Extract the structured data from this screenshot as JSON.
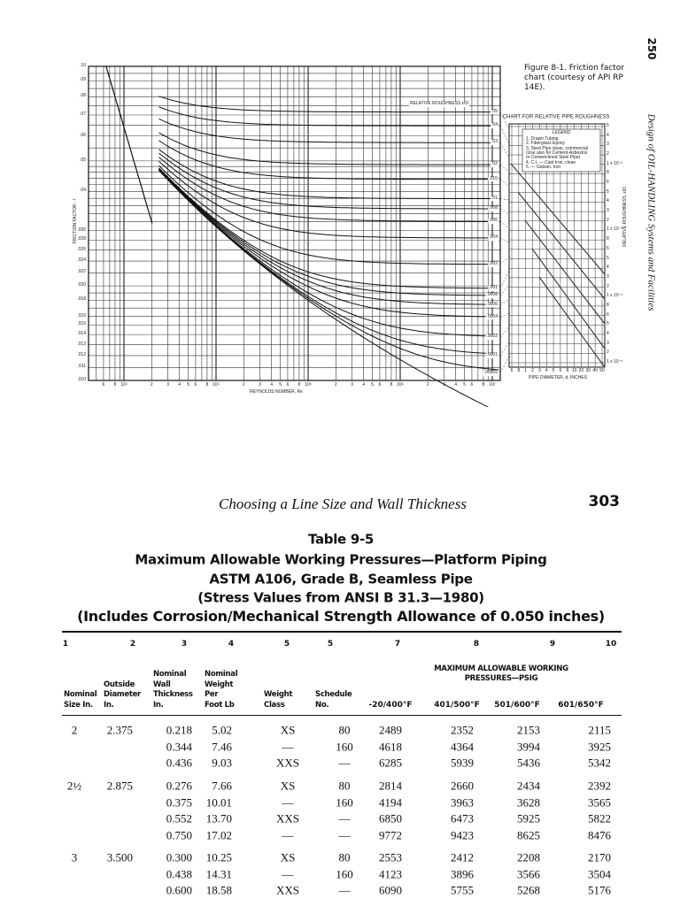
{
  "top_page": {
    "page_number": "250",
    "running_head": "Design of OIL-HANDLING Systems and Facilities",
    "caption": "Figure 8-1. Friction factor chart (courtesy of API RP 14E).",
    "friction_chart": {
      "y_axis_label": "FRICTION FACTOR - f",
      "x_axis_label": "REYNOLDS NUMBER, Re",
      "y_tick_labels": [
        ".10",
        ".09",
        ".08",
        ".07",
        ".06",
        ".05",
        ".04",
        ".030",
        ".028",
        ".026",
        ".024",
        ".022",
        ".020",
        ".018",
        ".016",
        ".015",
        ".014",
        ".013",
        ".012",
        ".011",
        ".010"
      ],
      "x_tick_labels": [
        "6",
        "8",
        "10³",
        "2",
        "3",
        "4",
        "5",
        "6",
        "8",
        "10⁴",
        "2",
        "3",
        "4",
        "5",
        "6",
        "8",
        "10⁵",
        "2",
        "3",
        "4",
        "5",
        "6",
        "8",
        "10⁶",
        "2",
        "3",
        "4",
        "5",
        "6",
        "8",
        "10⁷"
      ],
      "roughness_title": "RELATIVE ROUGHNESS ε/D",
      "roughness_labels": [
        ".05",
        ".04",
        ".03",
        ".02",
        ".015",
        ".01",
        ".008",
        ".006",
        ".004",
        ".002",
        ".001",
        ".0008",
        ".0006",
        ".0004",
        ".0002",
        ".0001",
        ".00005"
      ]
    },
    "roughness_chart": {
      "title": "CHART FOR RELATIVE PIPE ROUGHNESS",
      "legend_title": "LEGEND",
      "legend_items": [
        "1. Drawn Tubing",
        "2. Fiberglass Epoxy",
        "3. Steel Pipe clean, commercial",
        "(Use also for Cement-Asbestos",
        "or Cement-lined Steel Pipe)",
        "4. C.I. — Cast Iron, clean",
        "5. — Galvan. Iron"
      ],
      "x_tick_labels": [
        "6",
        "8",
        "1",
        "2",
        "3",
        "4",
        "5",
        "6",
        "8",
        "10",
        "20",
        "30",
        "40",
        "50"
      ],
      "x_axis_label": "PIPE DIAMETER, d, INCHES",
      "y_tick_labels": [
        "5",
        "4",
        "3",
        "2",
        "1 x 10⁻²",
        "8",
        "6",
        "5",
        "4",
        "3",
        "2",
        "1 x 10⁻³",
        "8",
        "6",
        "5",
        "4",
        "3",
        "2",
        "1 x 10⁻⁴",
        "8",
        "6",
        "5",
        "4",
        "3",
        "2",
        "1 x 10⁻⁵"
      ],
      "y_axis_label": "RELATIVE ROUGHNESS, ε/D"
    }
  },
  "bottom_page": {
    "running_head": "Choosing a Line Size and Wall Thickness",
    "page_number": "303",
    "table_title": [
      "Table 9-5",
      "Maximum Allowable Working Pressures—Platform Piping",
      "ASTM A106, Grade B, Seamless Pipe",
      "(Stress Values from ANSI B 31.3—1980)",
      "(Includes Corrosion/Mechanical Strength Allowance of 0.050 inches)"
    ],
    "table": {
      "column_numbers": [
        "1",
        "2",
        "3",
        "4",
        "5",
        "5",
        "7",
        "8",
        "9",
        "10"
      ],
      "column_headers": [
        "Nominal Size In.",
        "Outside Diameter In.",
        "Nominal Wall Thickness In.",
        "Nominal Weight Per Foot Lb",
        "Weight Class",
        "Schedule No."
      ],
      "group_header": "MAXIMUM ALLOWABLE WORKING PRESSURES—PSIG",
      "temperature_headers": [
        "-20/400°F",
        "401/500°F",
        "501/600°F",
        "601/650°F"
      ],
      "groups": [
        {
          "size": "2",
          "outside_diameter": "2.375",
          "rows": [
            [
              "0.218",
              "5.02",
              "XS",
              "80",
              "2489",
              "2352",
              "2153",
              "2115"
            ],
            [
              "0.344",
              "7.46",
              "—",
              "160",
              "4618",
              "4364",
              "3994",
              "3925"
            ],
            [
              "0.436",
              "9.03",
              "XXS",
              "—",
              "6285",
              "5939",
              "5436",
              "5342"
            ]
          ]
        },
        {
          "size": "2½",
          "outside_diameter": "2.875",
          "rows": [
            [
              "0.276",
              "7.66",
              "XS",
              "80",
              "2814",
              "2660",
              "2434",
              "2392"
            ],
            [
              "0.375",
              "10.01",
              "—",
              "160",
              "4194",
              "3963",
              "3628",
              "3565"
            ],
            [
              "0.552",
              "13.70",
              "XXS",
              "—",
              "6850",
              "6473",
              "5925",
              "5822"
            ],
            [
              "0.750",
              "17.02",
              "—",
              "—",
              "9772",
              "9423",
              "8625",
              "8476"
            ]
          ]
        },
        {
          "size": "3",
          "outside_diameter": "3.500",
          "rows": [
            [
              "0.300",
              "10.25",
              "XS",
              "80",
              "2553",
              "2412",
              "2208",
              "2170"
            ],
            [
              "0.438",
              "14.31",
              "—",
              "160",
              "4123",
              "3896",
              "3566",
              "3504"
            ],
            [
              "0.600",
              "18.58",
              "XXS",
              "—",
              "6090",
              "5755",
              "5268",
              "5176"
            ]
          ]
        }
      ]
    }
  }
}
